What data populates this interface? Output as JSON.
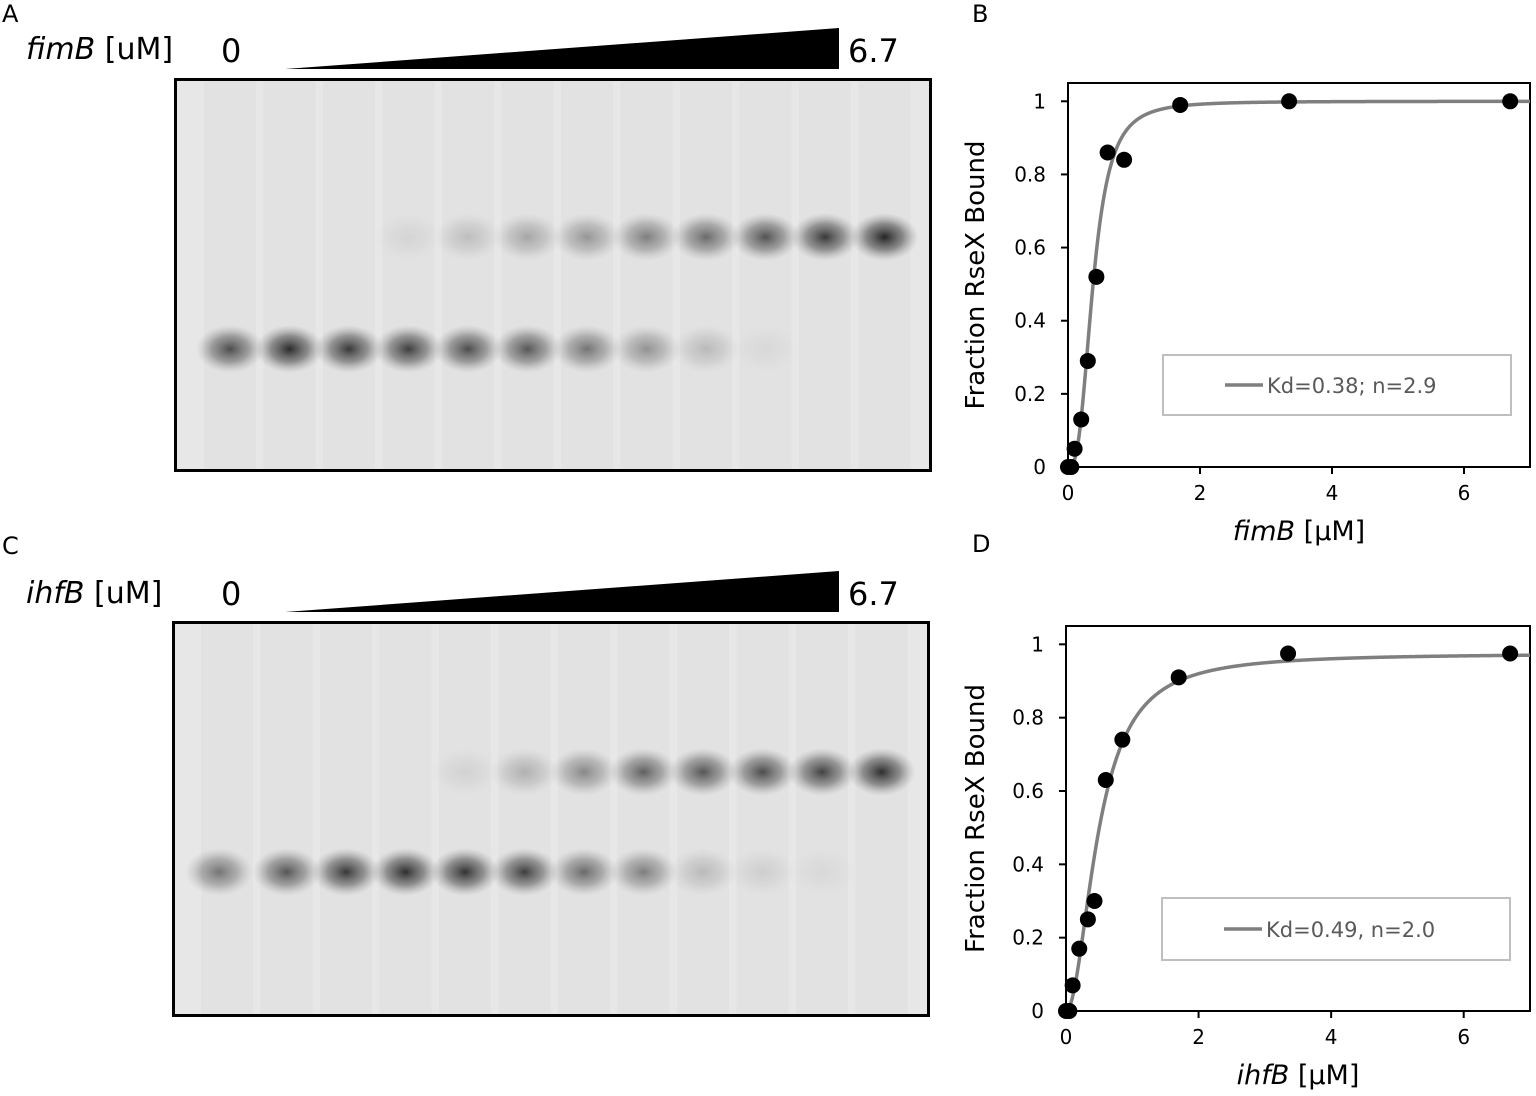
{
  "panels": {
    "A": {
      "letter": "A",
      "gene": "fimB",
      "unit": "[uM]",
      "conc_low": "0",
      "conc_high": "6.7",
      "bound_band": [
        0,
        0,
        0,
        0.07,
        0.18,
        0.3,
        0.38,
        0.5,
        0.6,
        0.72,
        0.85,
        0.95
      ],
      "free_band": [
        0.75,
        0.92,
        0.85,
        0.82,
        0.75,
        0.7,
        0.55,
        0.4,
        0.2,
        0.05,
        0,
        0
      ]
    },
    "C": {
      "letter": "C",
      "gene": "ihfB",
      "unit": "[uM]",
      "conc_low": "0",
      "conc_high": "6.7",
      "bound_band": [
        0,
        0,
        0,
        0,
        0.08,
        0.25,
        0.45,
        0.65,
        0.7,
        0.75,
        0.8,
        0.9
      ],
      "free_band": [
        0.55,
        0.7,
        0.85,
        0.9,
        0.88,
        0.82,
        0.6,
        0.5,
        0.2,
        0.1,
        0.05,
        0
      ]
    }
  },
  "chart_data": [
    {
      "panel_letter": "B",
      "type": "scatter",
      "xlabel_italic": "fimB",
      "xlabel_unit": "[µM]",
      "ylabel": "Fraction RseX Bound",
      "xlim": [
        0,
        7
      ],
      "ylim": [
        0,
        1.05
      ],
      "xticks": [
        0,
        2,
        4,
        6
      ],
      "yticks": [
        0,
        0.2,
        0.4,
        0.6,
        0.8,
        1
      ],
      "points": [
        [
          0,
          0
        ],
        [
          0.05,
          0.0
        ],
        [
          0.1,
          0.05
        ],
        [
          0.2,
          0.13
        ],
        [
          0.3,
          0.29
        ],
        [
          0.43,
          0.52
        ],
        [
          0.6,
          0.86
        ],
        [
          0.85,
          0.84
        ],
        [
          1.7,
          0.99
        ],
        [
          3.35,
          1.0
        ],
        [
          6.7,
          1.0
        ]
      ],
      "fit": {
        "kd": 0.38,
        "n": 2.9,
        "max": 1.0
      },
      "legend": "Kd=0.38; n=2.9",
      "legend_placement": "lower-right",
      "line_color": "#7f7f7f"
    },
    {
      "panel_letter": "D",
      "type": "scatter",
      "xlabel_italic": "ihfB",
      "xlabel_unit": "[µM]",
      "ylabel": "Fraction RseX Bound",
      "xlim": [
        0,
        7
      ],
      "ylim": [
        0,
        1.05
      ],
      "xticks": [
        0,
        2,
        4,
        6
      ],
      "yticks": [
        0,
        0.2,
        0.4,
        0.6,
        0.8,
        1
      ],
      "points": [
        [
          0,
          0
        ],
        [
          0.05,
          0.0
        ],
        [
          0.1,
          0.07
        ],
        [
          0.2,
          0.17
        ],
        [
          0.33,
          0.25
        ],
        [
          0.43,
          0.3
        ],
        [
          0.6,
          0.63
        ],
        [
          0.85,
          0.74
        ],
        [
          1.7,
          0.91
        ],
        [
          3.35,
          0.975
        ],
        [
          6.7,
          0.975
        ]
      ],
      "fit": {
        "kd": 0.49,
        "n": 2.0,
        "max": 0.975
      },
      "legend": "Kd=0.49, n=2.0",
      "legend_placement": "lower-right",
      "line_color": "#7f7f7f"
    }
  ]
}
